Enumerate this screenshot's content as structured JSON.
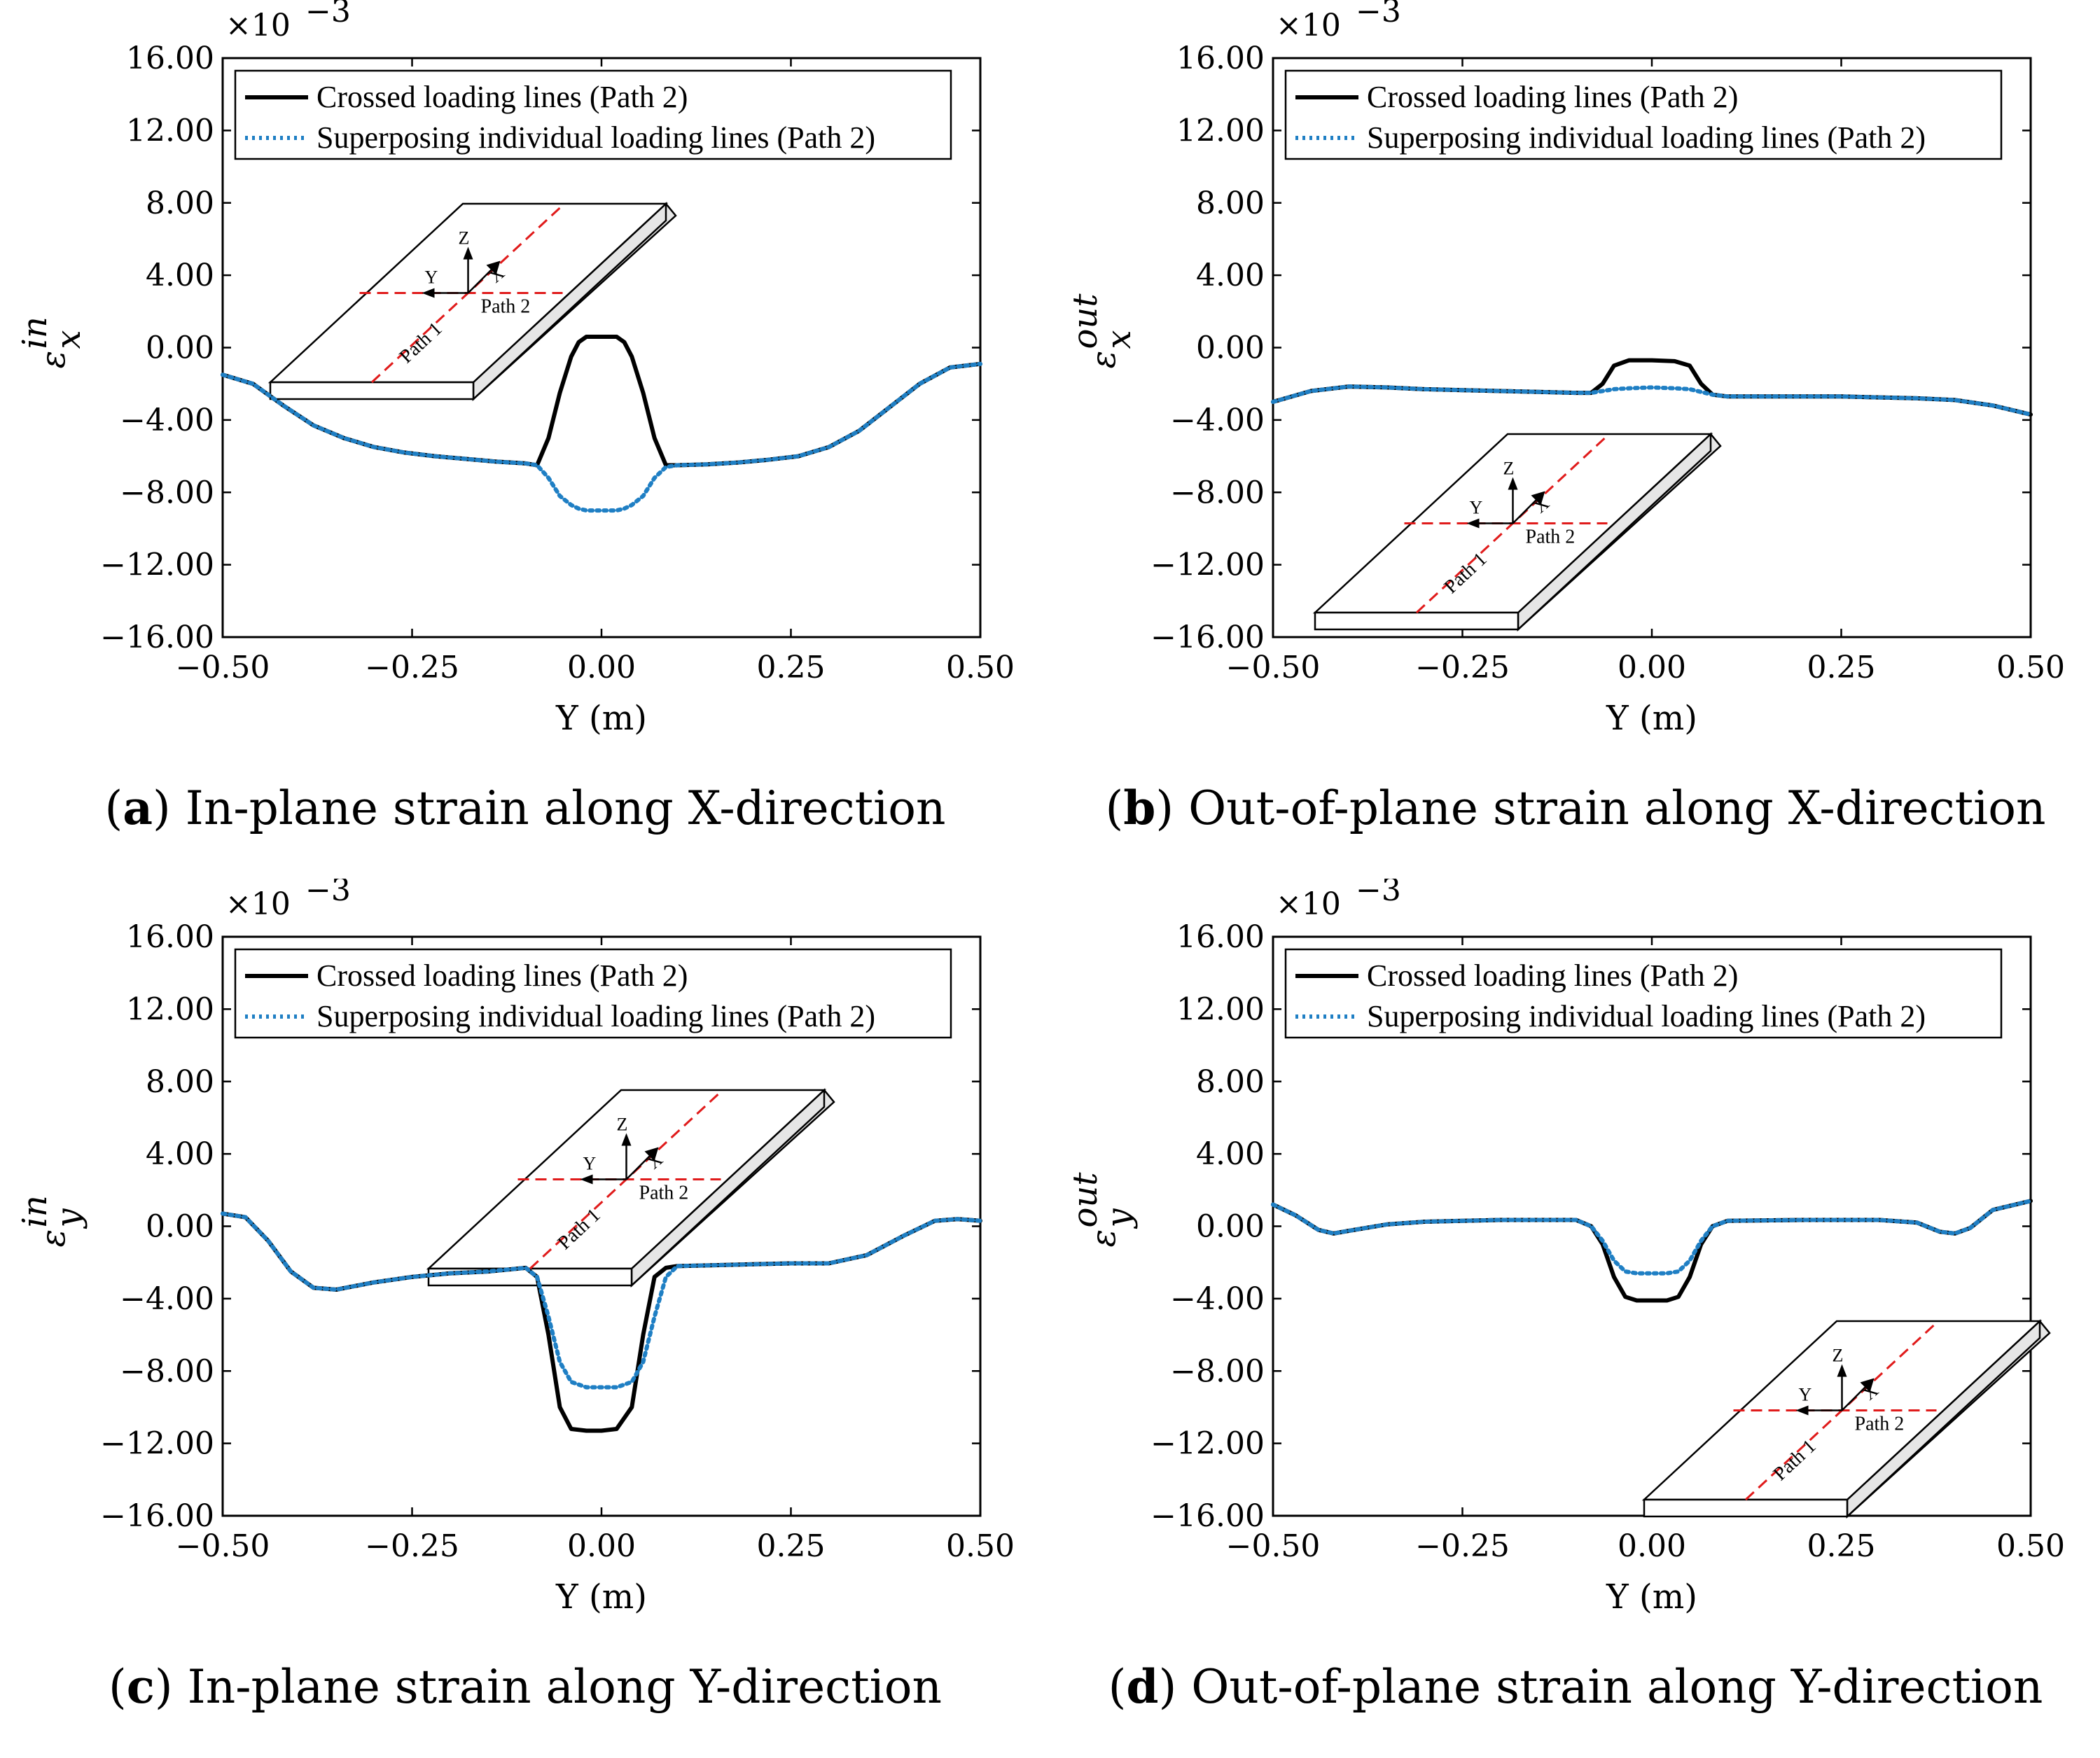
{
  "colors": {
    "crossed": "#000000",
    "superposed": "#1f7fc4",
    "path_line": "#e01b1b",
    "box_side": "#e6e6e6"
  },
  "inset": {
    "axes": {
      "z": "Z",
      "y": "Y",
      "x": "X"
    },
    "path1": "Path 1",
    "path2": "Path 2"
  },
  "chart_data": [
    {
      "type": "line",
      "panel_id": "a",
      "caption_letter": "a",
      "caption_text": "In-plane strain along X-direction",
      "ylabel_base": "ε",
      "ylabel_sup": "in",
      "ylabel_sub": "x",
      "xlabel": "Y (m)",
      "multiplier": "×10",
      "multiplier_exp": "−3",
      "xlim": [
        -0.5,
        0.5
      ],
      "ylim": [
        -16,
        16
      ],
      "xticks": [
        "−0.50",
        "−0.25",
        "0.00",
        "0.25",
        "0.50"
      ],
      "yticks": [
        "−16.00",
        "−12.00",
        "−8.00",
        "−4.00",
        "0.00",
        "4.00",
        "8.00",
        "12.00",
        "16.00"
      ],
      "legend": [
        "Crossed loading lines (Path 2)",
        "Superposing individual loading lines (Path 2)"
      ],
      "series": [
        {
          "name": "Crossed loading lines (Path 2)",
          "style": "solid",
          "x": [
            -0.5,
            -0.46,
            -0.42,
            -0.38,
            -0.34,
            -0.3,
            -0.26,
            -0.22,
            -0.18,
            -0.14,
            -0.1,
            -0.085,
            -0.07,
            -0.055,
            -0.04,
            -0.03,
            -0.02,
            0,
            0.02,
            0.03,
            0.04,
            0.055,
            0.07,
            0.085,
            0.1,
            0.14,
            0.18,
            0.22,
            0.26,
            0.3,
            0.34,
            0.38,
            0.42,
            0.46,
            0.5
          ],
          "y": [
            -1.5,
            -2.0,
            -3.2,
            -4.3,
            -5.0,
            -5.5,
            -5.8,
            -6.0,
            -6.15,
            -6.3,
            -6.4,
            -6.5,
            -5.0,
            -2.5,
            -0.5,
            0.3,
            0.6,
            0.6,
            0.6,
            0.3,
            -0.5,
            -2.5,
            -5.0,
            -6.5,
            -6.5,
            -6.45,
            -6.35,
            -6.2,
            -6.0,
            -5.5,
            -4.6,
            -3.3,
            -2.0,
            -1.1,
            -0.9
          ]
        },
        {
          "name": "Superposing individual loading lines (Path 2)",
          "style": "dotted",
          "x": [
            -0.5,
            -0.46,
            -0.42,
            -0.38,
            -0.34,
            -0.3,
            -0.26,
            -0.22,
            -0.18,
            -0.14,
            -0.1,
            -0.085,
            -0.07,
            -0.055,
            -0.04,
            -0.03,
            -0.02,
            0,
            0.02,
            0.03,
            0.04,
            0.055,
            0.07,
            0.085,
            0.1,
            0.14,
            0.18,
            0.22,
            0.26,
            0.3,
            0.34,
            0.38,
            0.42,
            0.46,
            0.5
          ],
          "y": [
            -1.5,
            -2.0,
            -3.2,
            -4.3,
            -5.0,
            -5.5,
            -5.8,
            -6.0,
            -6.15,
            -6.3,
            -6.4,
            -6.5,
            -7.2,
            -8.2,
            -8.7,
            -8.9,
            -9.0,
            -9.0,
            -9.0,
            -8.9,
            -8.7,
            -8.2,
            -7.2,
            -6.6,
            -6.5,
            -6.45,
            -6.35,
            -6.2,
            -6.0,
            -5.5,
            -4.6,
            -3.3,
            -2.0,
            -1.1,
            -0.9
          ]
        }
      ]
    },
    {
      "type": "line",
      "panel_id": "b",
      "caption_letter": "b",
      "caption_text": "Out-of-plane strain along X-direction",
      "ylabel_base": "ε",
      "ylabel_sup": "out",
      "ylabel_sub": "x",
      "xlabel": "Y (m)",
      "multiplier": "×10",
      "multiplier_exp": "−3",
      "xlim": [
        -0.5,
        0.5
      ],
      "ylim": [
        -16,
        16
      ],
      "xticks": [
        "−0.50",
        "−0.25",
        "0.00",
        "0.25",
        "0.50"
      ],
      "yticks": [
        "−16.00",
        "−12.00",
        "−8.00",
        "−4.00",
        "0.00",
        "4.00",
        "8.00",
        "12.00",
        "16.00"
      ],
      "legend": [
        "Crossed loading lines (Path 2)",
        "Superposing individual loading lines (Path 2)"
      ],
      "series": [
        {
          "name": "Crossed loading lines (Path 2)",
          "style": "solid",
          "x": [
            -0.5,
            -0.45,
            -0.4,
            -0.35,
            -0.3,
            -0.25,
            -0.2,
            -0.15,
            -0.1,
            -0.08,
            -0.065,
            -0.05,
            -0.03,
            0,
            0.03,
            0.05,
            0.065,
            0.08,
            0.1,
            0.15,
            0.2,
            0.25,
            0.3,
            0.35,
            0.4,
            0.45,
            0.5
          ],
          "y": [
            -3.0,
            -2.4,
            -2.15,
            -2.2,
            -2.3,
            -2.35,
            -2.4,
            -2.45,
            -2.5,
            -2.5,
            -2.0,
            -1.0,
            -0.7,
            -0.7,
            -0.75,
            -1.0,
            -2.0,
            -2.6,
            -2.7,
            -2.7,
            -2.7,
            -2.7,
            -2.75,
            -2.8,
            -2.9,
            -3.2,
            -3.7
          ]
        },
        {
          "name": "Superposing individual loading lines (Path 2)",
          "style": "dotted",
          "x": [
            -0.5,
            -0.45,
            -0.4,
            -0.35,
            -0.3,
            -0.25,
            -0.2,
            -0.15,
            -0.1,
            -0.08,
            -0.065,
            -0.05,
            -0.03,
            0,
            0.03,
            0.05,
            0.065,
            0.08,
            0.1,
            0.15,
            0.2,
            0.25,
            0.3,
            0.35,
            0.4,
            0.45,
            0.5
          ],
          "y": [
            -3.0,
            -2.4,
            -2.15,
            -2.2,
            -2.3,
            -2.35,
            -2.4,
            -2.45,
            -2.5,
            -2.5,
            -2.4,
            -2.3,
            -2.25,
            -2.2,
            -2.25,
            -2.3,
            -2.45,
            -2.6,
            -2.7,
            -2.7,
            -2.7,
            -2.7,
            -2.75,
            -2.8,
            -2.9,
            -3.2,
            -3.7
          ]
        }
      ]
    },
    {
      "type": "line",
      "panel_id": "c",
      "caption_letter": "c",
      "caption_text": "In-plane strain along Y-direction",
      "ylabel_base": "ε",
      "ylabel_sup": "in",
      "ylabel_sub": "y",
      "xlabel": "Y (m)",
      "multiplier": "×10",
      "multiplier_exp": "−3",
      "xlim": [
        -0.5,
        0.5
      ],
      "ylim": [
        -16,
        16
      ],
      "xticks": [
        "−0.50",
        "−0.25",
        "0.00",
        "0.25",
        "0.50"
      ],
      "yticks": [
        "−16.00",
        "−12.00",
        "−8.00",
        "−4.00",
        "0.00",
        "4.00",
        "8.00",
        "12.00",
        "16.00"
      ],
      "legend": [
        "Crossed loading lines (Path 2)",
        "Superposing individual loading lines (Path 2)"
      ],
      "series": [
        {
          "name": "Crossed loading lines (Path 2)",
          "style": "solid",
          "x": [
            -0.5,
            -0.47,
            -0.44,
            -0.41,
            -0.38,
            -0.35,
            -0.3,
            -0.25,
            -0.2,
            -0.15,
            -0.1,
            -0.085,
            -0.07,
            -0.055,
            -0.04,
            -0.02,
            0,
            0.02,
            0.04,
            0.055,
            0.07,
            0.085,
            0.1,
            0.15,
            0.2,
            0.25,
            0.3,
            0.35,
            0.4,
            0.44,
            0.47,
            0.5
          ],
          "y": [
            0.7,
            0.5,
            -0.8,
            -2.5,
            -3.4,
            -3.5,
            -3.1,
            -2.8,
            -2.6,
            -2.5,
            -2.3,
            -2.8,
            -6.0,
            -10.0,
            -11.2,
            -11.3,
            -11.3,
            -11.2,
            -10.0,
            -6.0,
            -2.8,
            -2.3,
            -2.2,
            -2.15,
            -2.1,
            -2.05,
            -2.05,
            -1.6,
            -0.5,
            0.3,
            0.4,
            0.3
          ]
        },
        {
          "name": "Superposing individual loading lines (Path 2)",
          "style": "dotted",
          "x": [
            -0.5,
            -0.47,
            -0.44,
            -0.41,
            -0.38,
            -0.35,
            -0.3,
            -0.25,
            -0.2,
            -0.15,
            -0.1,
            -0.085,
            -0.07,
            -0.055,
            -0.04,
            -0.02,
            0,
            0.02,
            0.04,
            0.055,
            0.07,
            0.085,
            0.1,
            0.15,
            0.2,
            0.25,
            0.3,
            0.35,
            0.4,
            0.44,
            0.47,
            0.5
          ],
          "y": [
            0.7,
            0.5,
            -0.8,
            -2.5,
            -3.4,
            -3.5,
            -3.1,
            -2.8,
            -2.6,
            -2.5,
            -2.3,
            -2.8,
            -5.0,
            -7.5,
            -8.6,
            -8.9,
            -8.9,
            -8.9,
            -8.6,
            -7.5,
            -5.0,
            -2.8,
            -2.2,
            -2.15,
            -2.1,
            -2.05,
            -2.05,
            -1.6,
            -0.5,
            0.3,
            0.4,
            0.3
          ]
        }
      ]
    },
    {
      "type": "line",
      "panel_id": "d",
      "caption_letter": "d",
      "caption_text": "Out-of-plane strain along Y-direction",
      "ylabel_base": "ε",
      "ylabel_sup": "out",
      "ylabel_sub": "y",
      "xlabel": "Y (m)",
      "multiplier": "×10",
      "multiplier_exp": "−3",
      "xlim": [
        -0.5,
        0.5
      ],
      "ylim": [
        -16,
        16
      ],
      "xticks": [
        "−0.50",
        "−0.25",
        "0.00",
        "0.25",
        "0.50"
      ],
      "yticks": [
        "−16.00",
        "−12.00",
        "−8.00",
        "−4.00",
        "0.00",
        "4.00",
        "8.00",
        "12.00",
        "16.00"
      ],
      "legend": [
        "Crossed loading lines (Path 2)",
        "Superposing individual loading lines (Path 2)"
      ],
      "series": [
        {
          "name": "Crossed loading lines (Path 2)",
          "style": "solid",
          "x": [
            -0.5,
            -0.47,
            -0.44,
            -0.42,
            -0.4,
            -0.35,
            -0.3,
            -0.2,
            -0.1,
            -0.08,
            -0.065,
            -0.05,
            -0.035,
            -0.02,
            0,
            0.02,
            0.035,
            0.05,
            0.065,
            0.08,
            0.1,
            0.2,
            0.3,
            0.35,
            0.38,
            0.4,
            0.42,
            0.45,
            0.5
          ],
          "y": [
            1.2,
            0.6,
            -0.2,
            -0.4,
            -0.25,
            0.1,
            0.25,
            0.35,
            0.35,
            0.0,
            -1.0,
            -2.8,
            -3.9,
            -4.1,
            -4.1,
            -4.1,
            -3.9,
            -2.8,
            -1.0,
            0.0,
            0.3,
            0.35,
            0.35,
            0.2,
            -0.3,
            -0.4,
            -0.1,
            0.9,
            1.4
          ]
        },
        {
          "name": "Superposing individual loading lines (Path 2)",
          "style": "dotted",
          "x": [
            -0.5,
            -0.47,
            -0.44,
            -0.42,
            -0.4,
            -0.35,
            -0.3,
            -0.2,
            -0.1,
            -0.08,
            -0.065,
            -0.05,
            -0.035,
            -0.02,
            0,
            0.02,
            0.035,
            0.05,
            0.065,
            0.08,
            0.1,
            0.2,
            0.3,
            0.35,
            0.38,
            0.4,
            0.42,
            0.45,
            0.5
          ],
          "y": [
            1.2,
            0.6,
            -0.2,
            -0.4,
            -0.25,
            0.1,
            0.25,
            0.35,
            0.35,
            0.0,
            -0.8,
            -1.9,
            -2.5,
            -2.6,
            -2.6,
            -2.6,
            -2.5,
            -1.9,
            -0.8,
            0.0,
            0.3,
            0.35,
            0.35,
            0.2,
            -0.3,
            -0.4,
            -0.1,
            0.9,
            1.4
          ]
        }
      ]
    }
  ]
}
